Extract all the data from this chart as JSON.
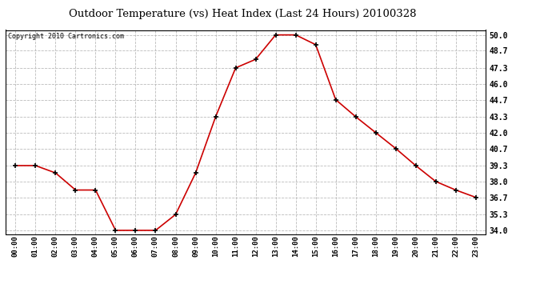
{
  "title": "Outdoor Temperature (vs) Heat Index (Last 24 Hours) 20100328",
  "copyright": "Copyright 2010 Cartronics.com",
  "x_labels": [
    "00:00",
    "01:00",
    "02:00",
    "03:00",
    "04:00",
    "05:00",
    "06:00",
    "07:00",
    "08:00",
    "09:00",
    "10:00",
    "11:00",
    "12:00",
    "13:00",
    "14:00",
    "15:00",
    "16:00",
    "17:00",
    "18:00",
    "19:00",
    "20:00",
    "21:00",
    "22:00",
    "23:00"
  ],
  "y_values": [
    39.3,
    39.3,
    38.7,
    37.3,
    37.3,
    34.0,
    34.0,
    34.0,
    35.3,
    38.7,
    43.3,
    47.3,
    48.0,
    50.0,
    50.0,
    49.2,
    44.7,
    43.3,
    42.0,
    40.7,
    39.3,
    38.0,
    37.3,
    36.7
  ],
  "line_color": "#cc0000",
  "marker_color": "#000000",
  "background_color": "#ffffff",
  "grid_color": "#bbbbbb",
  "title_fontsize": 9.5,
  "copyright_fontsize": 6,
  "ytick_labels": [
    "34.0",
    "35.3",
    "36.7",
    "38.0",
    "39.3",
    "40.7",
    "42.0",
    "43.3",
    "44.7",
    "46.0",
    "47.3",
    "48.7",
    "50.0"
  ],
  "ytick_values": [
    34.0,
    35.3,
    36.7,
    38.0,
    39.3,
    40.7,
    42.0,
    43.3,
    44.7,
    46.0,
    47.3,
    48.7,
    50.0
  ],
  "ylim": [
    33.7,
    50.4
  ],
  "xlim": [
    -0.5,
    23.5
  ]
}
